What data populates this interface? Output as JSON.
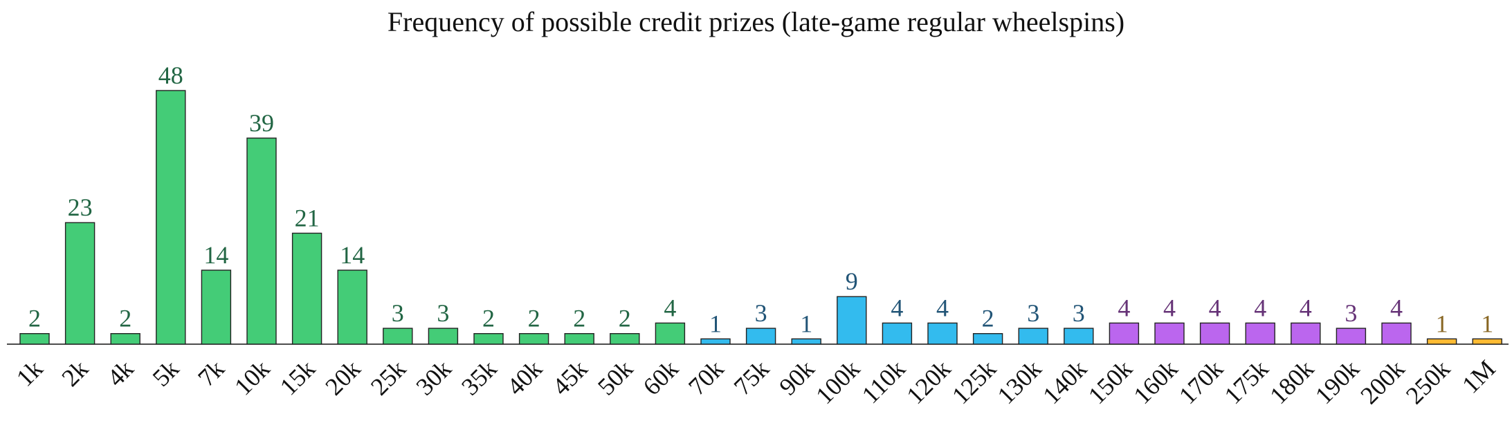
{
  "chart_data": {
    "type": "bar",
    "title": "Frequency of possible credit prizes (late-game regular wheelspins)",
    "xlabel": "",
    "ylabel": "",
    "ylim": [
      0,
      52
    ],
    "grid": false,
    "categories": [
      "1k",
      "2k",
      "4k",
      "5k",
      "7k",
      "10k",
      "15k",
      "20k",
      "25k",
      "30k",
      "35k",
      "40k",
      "45k",
      "50k",
      "60k",
      "70k",
      "75k",
      "90k",
      "100k",
      "110k",
      "120k",
      "125k",
      "130k",
      "140k",
      "150k",
      "160k",
      "170k",
      "175k",
      "180k",
      "190k",
      "200k",
      "250k",
      "1M"
    ],
    "values": [
      2,
      23,
      2,
      48,
      14,
      39,
      21,
      14,
      3,
      3,
      2,
      2,
      2,
      2,
      4,
      1,
      3,
      1,
      9,
      4,
      4,
      2,
      3,
      3,
      4,
      4,
      4,
      4,
      4,
      3,
      4,
      1,
      1
    ],
    "bar_colors": [
      "#44cc77",
      "#44cc77",
      "#44cc77",
      "#44cc77",
      "#44cc77",
      "#44cc77",
      "#44cc77",
      "#44cc77",
      "#44cc77",
      "#44cc77",
      "#44cc77",
      "#44cc77",
      "#44cc77",
      "#44cc77",
      "#44cc77",
      "#33bbee",
      "#33bbee",
      "#33bbee",
      "#33bbee",
      "#33bbee",
      "#33bbee",
      "#33bbee",
      "#33bbee",
      "#33bbee",
      "#bb66ee",
      "#bb66ee",
      "#bb66ee",
      "#bb66ee",
      "#bb66ee",
      "#bb66ee",
      "#bb66ee",
      "#ffbb33",
      "#ffbb33"
    ],
    "label_colors": [
      "#226644",
      "#226644",
      "#226644",
      "#226644",
      "#226644",
      "#226644",
      "#226644",
      "#226644",
      "#226644",
      "#226644",
      "#226644",
      "#226644",
      "#226644",
      "#226644",
      "#226644",
      "#225577",
      "#225577",
      "#225577",
      "#225577",
      "#225577",
      "#225577",
      "#225577",
      "#225577",
      "#225577",
      "#663377",
      "#663377",
      "#663377",
      "#663377",
      "#663377",
      "#663377",
      "#663377",
      "#886622",
      "#886622"
    ]
  }
}
